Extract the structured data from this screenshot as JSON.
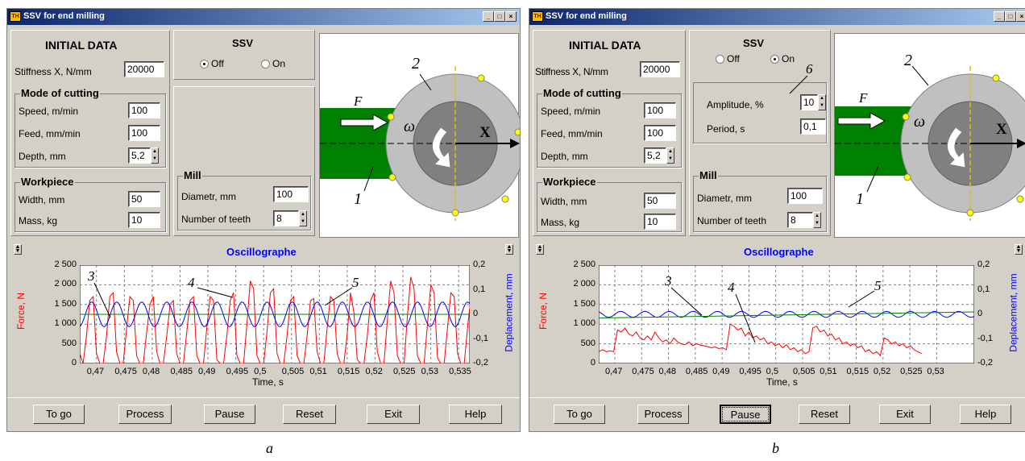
{
  "windows": [
    {
      "id": "a",
      "title": "SSV for end milling",
      "title_icon": "TH",
      "window_buttons": [
        "_",
        "□",
        "×"
      ],
      "initial_data": {
        "heading": "INITIAL DATA",
        "stiffness_label": "Stiffness X, N/mm",
        "stiffness_value": "20000"
      },
      "mode": {
        "heading": "Mode of cutting",
        "speed_label": "Speed, m/min",
        "speed_value": "100",
        "feed_label": "Feed, mm/min",
        "feed_value": "100",
        "depth_label": "Depth, mm",
        "depth_value": "5,2"
      },
      "workpiece": {
        "heading": "Workpiece",
        "width_label": "Width, mm",
        "width_value": "50",
        "mass_label": "Mass, kg",
        "mass_value": "10"
      },
      "ssv": {
        "heading": "SSV",
        "off_label": "Off",
        "on_label": "On",
        "selected": "Off"
      },
      "mill": {
        "heading": "Mill",
        "diam_label": "Diametr, mm",
        "diam_value": "100",
        "teeth_label": "Number of teeth",
        "teeth_value": "8"
      },
      "diagram": {
        "force_label": "F",
        "omega_label": "ω",
        "x_label": "X",
        "label_1": "1",
        "label_2": "2"
      },
      "osc": {
        "title": "Oscillographe",
        "ylabel_left": "Force, N",
        "ylabel_right": "Deplacement, mm",
        "xlabel": "Time, s",
        "yticks_left": [
          "2 500",
          "2 000",
          "1 500",
          "1 000",
          "500",
          "0"
        ],
        "yticks_right": [
          "0,2",
          "0,1",
          "0",
          "-0,1",
          "-0,2"
        ],
        "xticks": [
          "0,47",
          "0,475",
          "0,48",
          "0,485",
          "0,49",
          "0,495",
          "0,5",
          "0,505",
          "0,51",
          "0,515",
          "0,52",
          "0,525",
          "0,53",
          "0,535"
        ],
        "ann_3": "3",
        "ann_4": "4",
        "ann_5": "5"
      },
      "buttons": [
        "To go",
        "Process",
        "Pause",
        "Reset",
        "Exit",
        "Help"
      ]
    },
    {
      "id": "b",
      "title": "SSV for end milling",
      "title_icon": "TH",
      "window_buttons": [
        "_",
        "□",
        "×"
      ],
      "initial_data": {
        "heading": "INITIAL DATA",
        "stiffness_label": "Stiffness X, N/mm",
        "stiffness_value": "20000"
      },
      "mode": {
        "heading": "Mode of cutting",
        "speed_label": "Speed, m/min",
        "speed_value": "100",
        "feed_label": "Feed, mm/min",
        "feed_value": "100",
        "depth_label": "Depth, mm",
        "depth_value": "5,2"
      },
      "workpiece": {
        "heading": "Workpiece",
        "width_label": "Width, mm",
        "width_value": "50",
        "mass_label": "Mass, kg",
        "mass_value": "10"
      },
      "ssv": {
        "heading": "SSV",
        "off_label": "Off",
        "on_label": "On",
        "selected": "On",
        "amp_label": "Amplitude, %",
        "amp_value": "10",
        "period_label": "Period, s",
        "period_value": "0,1",
        "ann_6": "6"
      },
      "mill": {
        "heading": "Mill",
        "diam_label": "Diametr, mm",
        "diam_value": "100",
        "teeth_label": "Number of teeth",
        "teeth_value": "8"
      },
      "diagram": {
        "force_label": "F",
        "omega_label": "ω",
        "x_label": "X",
        "label_1": "1",
        "label_2": "2"
      },
      "osc": {
        "title": "Oscillographe",
        "ylabel_left": "Force, N",
        "ylabel_right": "Deplacement, mm",
        "xlabel": "Time, s",
        "yticks_left": [
          "2 500",
          "2 000",
          "1 500",
          "1 000",
          "500",
          "0"
        ],
        "yticks_right": [
          "0,2",
          "0,1",
          "0",
          "-0,1",
          "-0,2"
        ],
        "xticks": [
          "0,47",
          "0,475",
          "0,48",
          "0,485",
          "0,49",
          "0,495",
          "0,5",
          "0,505",
          "0,51",
          "0,515",
          "0,52",
          "0,525",
          "0,53"
        ],
        "ann_3": "3",
        "ann_4": "4",
        "ann_5": "5"
      },
      "buttons": [
        "To go",
        "Process",
        "Pause",
        "Reset",
        "Exit",
        "Help"
      ]
    }
  ],
  "captions": [
    "a",
    "b"
  ],
  "chart_data": [
    {
      "type": "line",
      "xlabel": "Time, s",
      "ylabel": "Force, N",
      "y2label": "Deplacement, mm",
      "xlim": [
        0.467,
        0.537
      ],
      "ylim": [
        0,
        2500
      ],
      "y2lim": [
        -0.2,
        0.2
      ],
      "grid": true,
      "series": [
        {
          "axis": "left",
          "color": "#ff0000",
          "values": {
            "x_start": 0.467,
            "x_step": 0.0006,
            "y": [
              250,
              0,
              700,
              1600,
              1700,
              250,
              0,
              0,
              700,
              1700,
              1800,
              300,
              0,
              0,
              900,
              1700,
              1600,
              200,
              0,
              0,
              800,
              1500,
              1700,
              300,
              0,
              0,
              700,
              1500,
              1600,
              250,
              0,
              0,
              800,
              1600,
              1700,
              200,
              0,
              0,
              900,
              1700,
              1600,
              100,
              0,
              0,
              700,
              1600,
              1800,
              200,
              0,
              0,
              1000,
              2100,
              1900,
              200,
              0,
              0,
              800,
              1800,
              1900,
              250,
              0,
              0,
              700,
              1600,
              1700,
              200,
              0,
              0,
              700,
              1600,
              1650,
              300,
              0,
              0,
              900,
              1700,
              1600,
              250,
              0,
              0,
              750,
              1800,
              1300,
              100,
              0,
              0,
              700,
              1600,
              1800,
              300,
              0,
              0,
              1100,
              2100,
              1800,
              200,
              0,
              0,
              1200,
              2200,
              1900,
              200,
              0,
              0,
              1000,
              2000,
              1800,
              150,
              0,
              0,
              900,
              1800,
              1700,
              250,
              0,
              0,
              900,
              1700,
              1800
            ]
          }
        },
        {
          "axis": "right",
          "color": "#0000ff",
          "values": {
            "period": 0.0045,
            "center": 0.0,
            "amplitude": 0.05
          }
        },
        {
          "axis": "right",
          "color": "#008000",
          "values": {
            "const": 0.0
          }
        }
      ]
    },
    {
      "type": "line",
      "xlabel": "Time, s",
      "ylabel": "Force, N",
      "y2label": "Deplacement, mm",
      "xlim": [
        0.465,
        0.535
      ],
      "ylim": [
        0,
        2500
      ],
      "y2lim": [
        -0.2,
        0.2
      ],
      "grid": true,
      "series": [
        {
          "axis": "left",
          "color": "#ff0000",
          "values": {
            "x_start": 0.465,
            "x_step": 0.0007,
            "y": [
              300,
              350,
              300,
              320,
              300,
              850,
              800,
              900,
              750,
              700,
              800,
              650,
              600,
              700,
              600,
              800,
              650,
              550,
              600,
              500,
              650,
              550,
              500,
              480,
              550,
              450,
              500,
              470,
              450,
              430,
              400,
              420,
              380,
              400,
              350,
              1000,
              950,
              850,
              900,
              700,
              800,
              650,
              700,
              600,
              650,
              500,
              550,
              450,
              500,
              400,
              480,
              350,
              400,
              300,
              350,
              250,
              300,
              900,
              950,
              800,
              850,
              700,
              750,
              600,
              650,
              500,
              550,
              450,
              500,
              400,
              450,
              300,
              350,
              250,
              300,
              200,
              650,
              600,
              500,
              550,
              450,
              500,
              400,
              450,
              350,
              300,
              250
            ]
          }
        },
        {
          "axis": "right",
          "color": "#0000ff",
          "values": {
            "period": 0.0045,
            "center": 0.0,
            "amplitude": 0.012
          }
        },
        {
          "axis": "right",
          "color": "#008000",
          "values": {
            "start": -0.015,
            "end": 0.01
          }
        }
      ]
    }
  ]
}
